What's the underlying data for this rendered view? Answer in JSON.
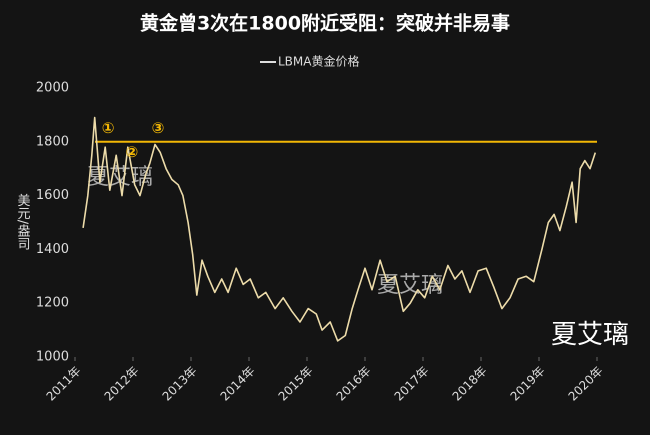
{
  "chart_data": {
    "type": "line",
    "title": "黄金曾3次在1800附近受阻：突破并非易事",
    "y_label": "美元/盎司",
    "x": [
      2011.14,
      2011.22,
      2011.29,
      2011.34,
      2011.43,
      2011.52,
      2011.6,
      2011.71,
      2011.81,
      2011.91,
      2012.03,
      2012.12,
      2012.22,
      2012.29,
      2012.38,
      2012.47,
      2012.57,
      2012.67,
      2012.78,
      2012.86,
      2012.95,
      2013.03,
      2013.1,
      2013.19,
      2013.29,
      2013.41,
      2013.53,
      2013.64,
      2013.78,
      2013.9,
      2014.02,
      2014.16,
      2014.29,
      2014.45,
      2014.59,
      2014.74,
      2014.88,
      2015.02,
      2015.16,
      2015.26,
      2015.4,
      2015.53,
      2015.66,
      2015.78,
      2015.88,
      2016.0,
      2016.12,
      2016.26,
      2016.38,
      2016.52,
      2016.66,
      2016.78,
      2016.91,
      2017.03,
      2017.16,
      2017.29,
      2017.43,
      2017.55,
      2017.67,
      2017.81,
      2017.95,
      2018.09,
      2018.22,
      2018.36,
      2018.5,
      2018.64,
      2018.78,
      2018.91,
      2019.05,
      2019.16,
      2019.26,
      2019.36,
      2019.47,
      2019.57,
      2019.64,
      2019.71,
      2019.79,
      2019.88,
      2019.97
    ],
    "series": [
      {
        "name": "LBMA黄金价格",
        "color": "#eddcaa",
        "values": [
          1480,
          1600,
          1750,
          1890,
          1650,
          1780,
          1620,
          1750,
          1600,
          1780,
          1640,
          1600,
          1680,
          1720,
          1790,
          1760,
          1700,
          1660,
          1640,
          1600,
          1500,
          1380,
          1230,
          1360,
          1300,
          1240,
          1290,
          1240,
          1330,
          1270,
          1290,
          1220,
          1240,
          1180,
          1220,
          1170,
          1130,
          1180,
          1160,
          1100,
          1130,
          1060,
          1080,
          1180,
          1250,
          1330,
          1250,
          1360,
          1280,
          1300,
          1170,
          1200,
          1250,
          1220,
          1300,
          1250,
          1340,
          1290,
          1320,
          1240,
          1320,
          1330,
          1260,
          1180,
          1220,
          1290,
          1300,
          1280,
          1400,
          1500,
          1530,
          1470,
          1560,
          1650,
          1500,
          1700,
          1730,
          1700,
          1760
        ]
      }
    ],
    "reference_line": {
      "value": 1800,
      "color": "#f2b705"
    },
    "annotations": [
      {
        "text": "①",
        "x": 2011.57,
        "y": 1850
      },
      {
        "text": "②",
        "x": 2011.98,
        "y": 1760
      },
      {
        "text": "③",
        "x": 2012.43,
        "y": 1850
      }
    ],
    "watermarks": [
      "夏艾璃",
      "夏艾璃",
      "夏艾璃"
    ],
    "xlim": [
      2011,
      2020
    ],
    "xticks": [
      {
        "value": 2011,
        "label": "2011年"
      },
      {
        "value": 2012,
        "label": "2012年"
      },
      {
        "value": 2013,
        "label": "2013年"
      },
      {
        "value": 2014,
        "label": "2014年"
      },
      {
        "value": 2015,
        "label": "2015年"
      },
      {
        "value": 2016,
        "label": "2016年"
      },
      {
        "value": 2017,
        "label": "2017年"
      },
      {
        "value": 2018,
        "label": "2018年"
      },
      {
        "value": 2019,
        "label": "2019年"
      },
      {
        "value": 2020,
        "label": "2020年"
      }
    ],
    "ylim": [
      1000,
      2000
    ],
    "yticks": [
      1000,
      1200,
      1400,
      1600,
      1800,
      2000
    ],
    "legend": "top"
  }
}
